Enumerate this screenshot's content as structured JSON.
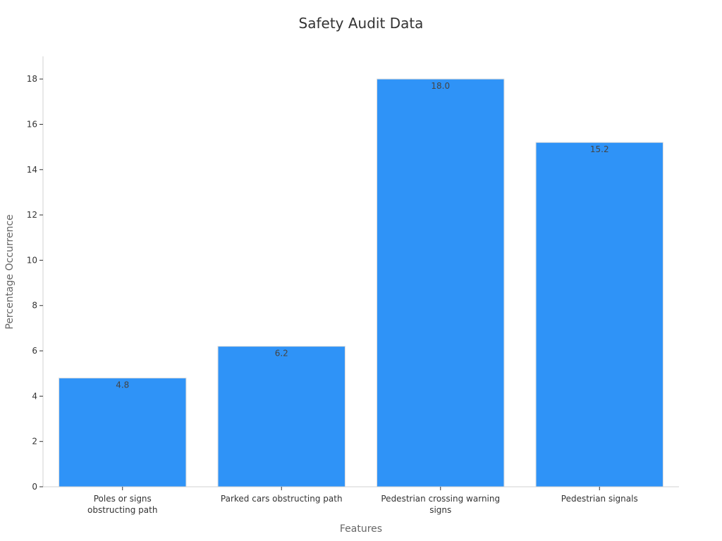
{
  "chart_data": {
    "type": "bar",
    "title": "Safety Audit Data",
    "xlabel": "Features",
    "ylabel": "Percentage Occurrence",
    "categories": [
      "Poles or signs obstructing path",
      "Parked cars obstructing path",
      "Pedestrian crossing warning signs",
      "Pedestrian signals"
    ],
    "values": [
      4.8,
      6.2,
      18.0,
      15.2
    ],
    "data_labels": [
      "4.8",
      "6.2",
      "18.0",
      "15.2"
    ],
    "ylim": [
      0,
      19
    ],
    "yticks": [
      0,
      2,
      4,
      6,
      8,
      10,
      12,
      14,
      16,
      18
    ],
    "grid": false,
    "legend": "none",
    "bar_color": "#2f93f7",
    "bar_edge_color": "#dddddd"
  }
}
